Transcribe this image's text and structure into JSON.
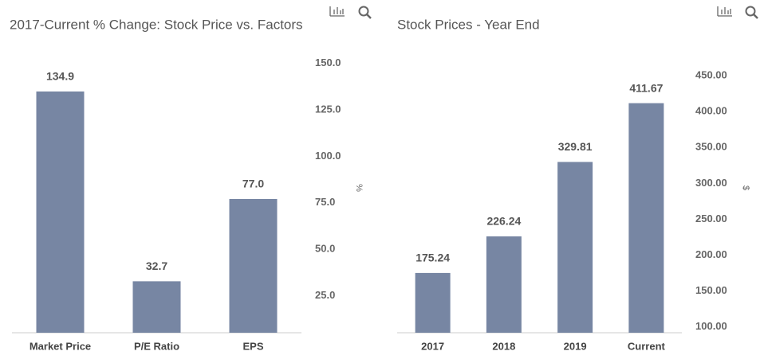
{
  "chart_data": [
    {
      "type": "bar",
      "title": "2017-Current % Change: Stock Price vs. Factors",
      "categories": [
        "Market Price",
        "P/E Ratio",
        "EPS"
      ],
      "values": [
        134.9,
        32.7,
        77.0
      ],
      "value_labels": [
        "134.9",
        "32.7",
        "77.0"
      ],
      "color": "#7786a3",
      "ylim": [
        5,
        155
      ],
      "yticks": [
        {
          "value": 25,
          "label": "25.0"
        },
        {
          "value": 50,
          "label": "50.0"
        },
        {
          "value": 75,
          "label": "75.0"
        },
        {
          "value": 100,
          "label": "100.0"
        },
        {
          "value": 125,
          "label": "125.0"
        },
        {
          "value": 150,
          "label": "150.0"
        }
      ],
      "ylabel": "%"
    },
    {
      "type": "bar",
      "title": "Stock Prices - Year End",
      "categories": [
        "2017",
        "2018",
        "2019",
        "Current"
      ],
      "values": [
        175.24,
        226.24,
        329.81,
        411.67
      ],
      "value_labels": [
        "175.24",
        "226.24",
        "329.81",
        "411.67"
      ],
      "color": "#7786a3",
      "ylim": [
        92,
        460
      ],
      "yticks": [
        {
          "value": 100,
          "label": "100.00"
        },
        {
          "value": 150,
          "label": "150.00"
        },
        {
          "value": 200,
          "label": "200.00"
        },
        {
          "value": 250,
          "label": "250.00"
        },
        {
          "value": 300,
          "label": "300.00"
        },
        {
          "value": 350,
          "label": "350.00"
        },
        {
          "value": 400,
          "label": "400.00"
        },
        {
          "value": 450,
          "label": "450.00"
        }
      ],
      "ylabel": "$"
    }
  ]
}
